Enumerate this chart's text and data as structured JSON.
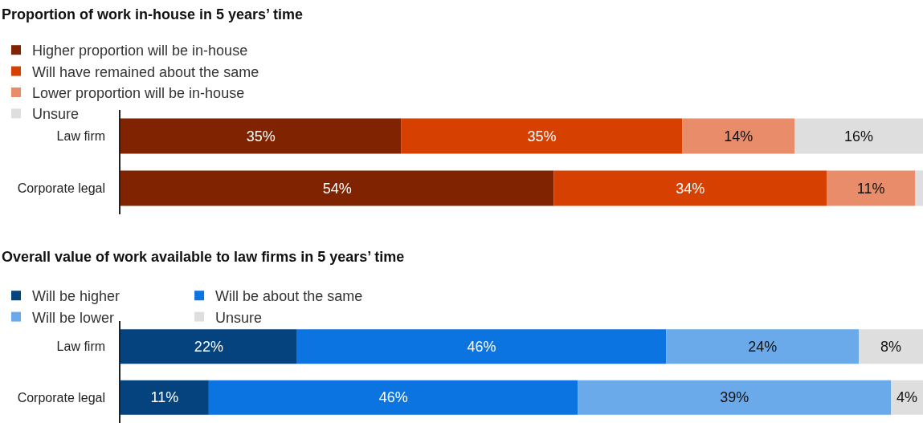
{
  "chart_data": [
    {
      "type": "bar",
      "orientation": "horizontal",
      "stacked": true,
      "title": "Proportion of work in-house in 5 years’ time",
      "categories": [
        "Law firm",
        "Corporate legal"
      ],
      "xlim": [
        0,
        100
      ],
      "legend": "top",
      "tick_labels": "y",
      "series": [
        {
          "name": "Higher proportion will be in-house",
          "color": "#7f2300",
          "values": [
            35,
            54
          ],
          "value_labels": [
            "35%",
            "54%"
          ]
        },
        {
          "name": "Will have remained about the same",
          "color": "#d64000",
          "values": [
            35,
            34
          ],
          "value_labels": [
            "35%",
            "34%"
          ]
        },
        {
          "name": "Lower proportion will be in-house",
          "color": "#e88c6a",
          "values": [
            14,
            11
          ],
          "value_labels": [
            "14%",
            "11%"
          ]
        },
        {
          "name": "Unsure",
          "color": "#dedede",
          "values": [
            16,
            1
          ],
          "value_labels": [
            "16%",
            null
          ]
        }
      ]
    },
    {
      "type": "bar",
      "orientation": "horizontal",
      "stacked": true,
      "title": "Overall value of work available to law firms in 5 years’ time",
      "categories": [
        "Law firm",
        "Corporate legal"
      ],
      "xlim": [
        0,
        100
      ],
      "legend": "top",
      "tick_labels": "y",
      "series": [
        {
          "name": "Will be higher",
          "color": "#05437f",
          "values": [
            22,
            11
          ],
          "value_labels": [
            "22%",
            "11%"
          ]
        },
        {
          "name": "Will be about the same",
          "color": "#0b74e1",
          "values": [
            46,
            46
          ],
          "value_labels": [
            "46%",
            "46%"
          ]
        },
        {
          "name": "Will be lower",
          "color": "#6aaaeb",
          "values": [
            24,
            39
          ],
          "value_labels": [
            "24%",
            "39%"
          ]
        },
        {
          "name": "Unsure",
          "color": "#dedede",
          "values": [
            8,
            4
          ],
          "value_labels": [
            "8%",
            "4%"
          ]
        }
      ]
    }
  ]
}
